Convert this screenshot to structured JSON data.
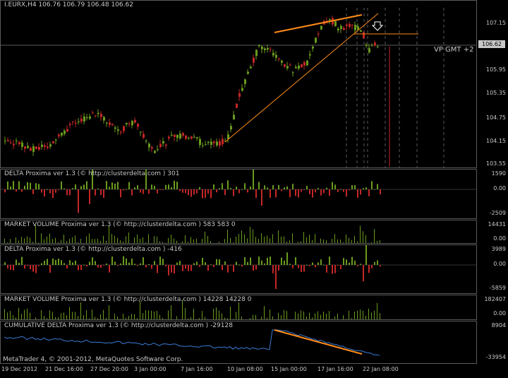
{
  "chart": {
    "header": "I.EURX,H4  106.76 106.79 106.48 106.62",
    "price_tag": "106.62",
    "annotation": "VP GMT +2",
    "price_ticks": [
      "107.15",
      "106.62",
      "105.95",
      "105.35",
      "104.75",
      "104.15",
      "103.55"
    ],
    "colors": {
      "bull": "#6b9b1e",
      "bear": "#c42727",
      "trend": "#ff8c1a",
      "line": "#3a7bd5",
      "grid": "#5a5a5a"
    }
  },
  "panels": [
    {
      "label": "DELTA Proxima ver 1.3 (© http://clusterdelta.com ) 301",
      "ticks": [
        "1590",
        "0.00",
        "-2509"
      ]
    },
    {
      "label": "MARKET VOLUME Proxima ver 1.3 (© http://clusterdelta.com ) 583 583 0",
      "ticks": [
        "14431",
        "0.00"
      ]
    },
    {
      "label": "DELTA Proxima ver 1.3 (© http://clusterdelta.com ) -416",
      "ticks": [
        "3989",
        "0.00",
        "-5859"
      ]
    },
    {
      "label": "MARKET VOLUME Proxima ver 1.3 (© http://clusterdelta.com ) 14228 14228 0",
      "ticks": [
        "182407",
        "0.00"
      ]
    },
    {
      "label": "CUMULATIVE DELTA Proxima ver 1.3 (© http://clusterdelta.com ) -29128",
      "ticks": [
        "8904",
        "-33954"
      ]
    }
  ],
  "footer": "MetaTrader 4, © 2001-2012, MetaQuotes Software Corp.",
  "time_labels": [
    "19 Dec 2012",
    "21 Dec 16:00",
    "27 Dec 20:00",
    "3 Jan 00:00",
    "7 Jan 16:00",
    "10 Jan 08:00",
    "15 Jan 00:00",
    "17 Jan 16:00",
    "22 Jan 08:00"
  ]
}
